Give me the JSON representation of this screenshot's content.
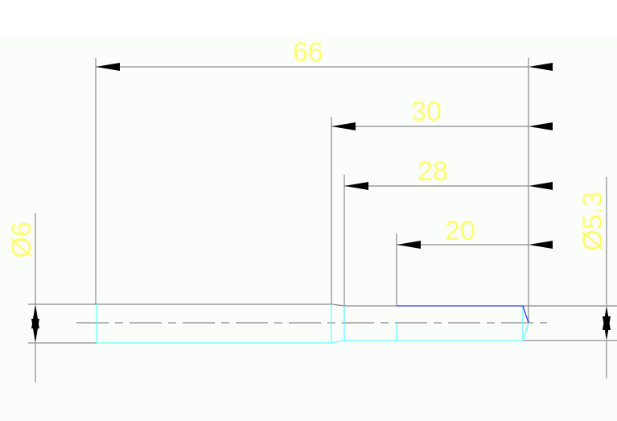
{
  "drawing": {
    "dimensions": [
      {
        "id": "overall-length",
        "label": "66"
      },
      {
        "id": "length-30",
        "label": "30"
      },
      {
        "id": "length-28",
        "label": "28"
      },
      {
        "id": "length-20",
        "label": "20"
      },
      {
        "id": "diameter-left",
        "label": "Ø6"
      },
      {
        "id": "diameter-right",
        "label": "Ø5.3"
      }
    ],
    "colors": {
      "background": "#fbfdfb",
      "dimension_lines": "#8a8a8a",
      "dimension_text": "#ffff66",
      "part_edges": "#66ffff",
      "highlight_edge": "#3333ff",
      "arrowheads": "#000000"
    }
  }
}
